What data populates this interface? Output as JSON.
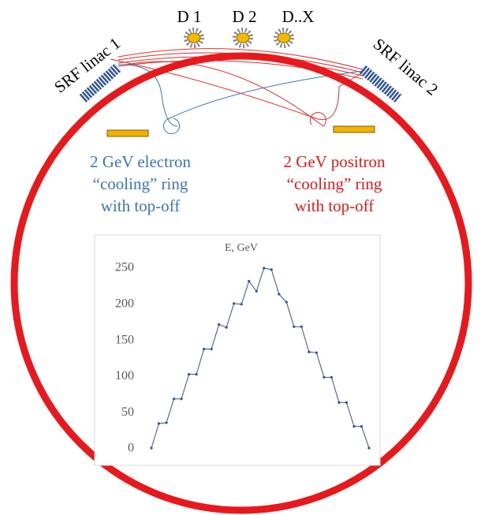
{
  "detectors": [
    "D 1",
    "D 2",
    "D..X"
  ],
  "linacs": [
    "SRF linac 1",
    "SRF linac 2"
  ],
  "electron_ring": [
    "2 GeV electron",
    "“cooling” ring",
    "with top-off"
  ],
  "positron_ring": [
    "2 GeV positron",
    "“cooling” ring",
    "with top-off"
  ],
  "chart_data": {
    "type": "line",
    "title": "E, GeV",
    "categories": [
      null,
      null,
      null,
      null,
      null,
      null,
      null,
      null,
      null,
      null,
      null,
      null,
      null,
      null,
      null,
      null,
      null,
      null,
      null,
      null,
      null,
      null,
      null,
      null,
      null,
      null,
      null,
      null,
      null,
      null
    ],
    "values": [
      1,
      35,
      36,
      69,
      69,
      103,
      103,
      138,
      138,
      172,
      168,
      201,
      200,
      232,
      218,
      250,
      248,
      214,
      203,
      169,
      169,
      134,
      133,
      99,
      99,
      64,
      64,
      31,
      31,
      1
    ],
    "color": "#2f5597",
    "ylim": [
      0,
      250
    ],
    "yticks": [
      0,
      50,
      100,
      150,
      200,
      250
    ]
  }
}
